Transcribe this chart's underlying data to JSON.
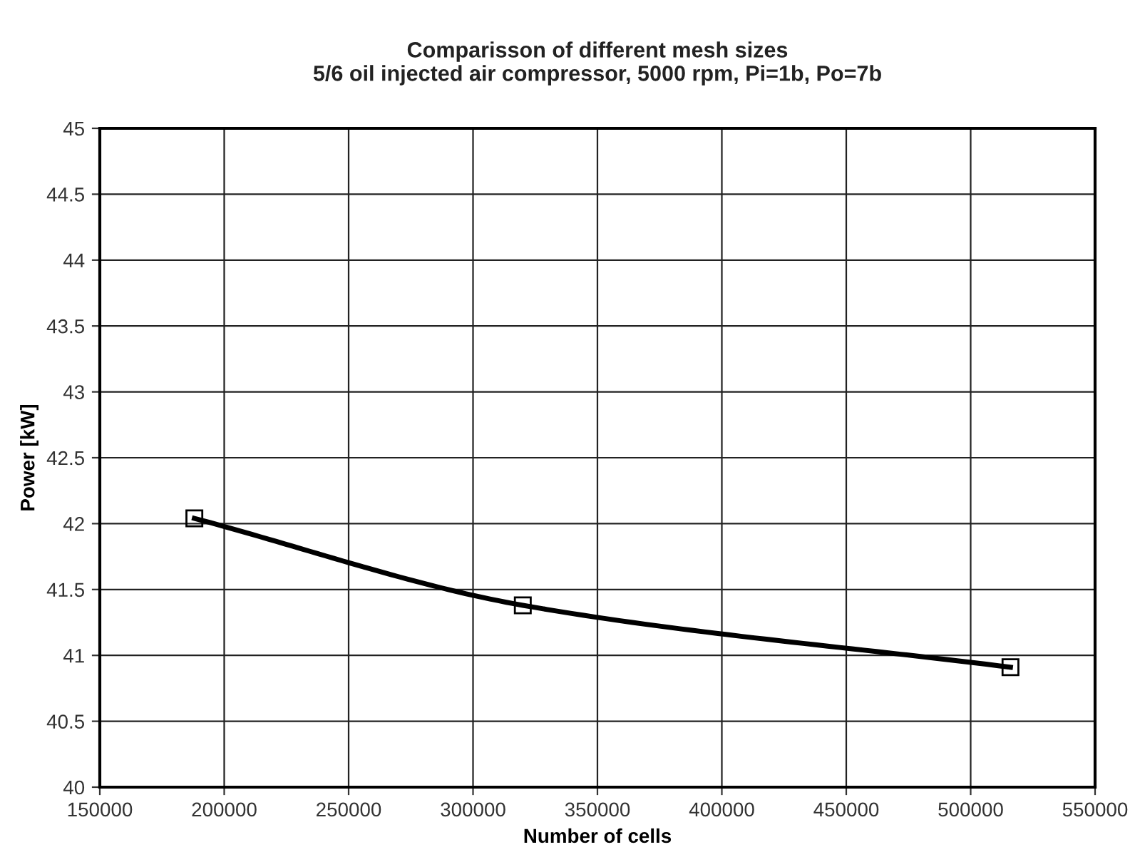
{
  "chart_data": {
    "type": "line",
    "title": "Comparisson of different mesh sizes\n5/6 oil injected air compressor, 5000 rpm, Pi=1b, Po=7b",
    "xlabel": "Number of cells",
    "ylabel": "Power [kW]",
    "x": [
      188000,
      320000,
      516000
    ],
    "series": [
      {
        "color": "#000000",
        "values": [
          42.04,
          41.38,
          40.91
        ]
      }
    ],
    "xlim": [
      150000,
      550000
    ],
    "xticks": [
      150000,
      200000,
      250000,
      300000,
      350000,
      400000,
      450000,
      500000,
      550000
    ],
    "ylim": [
      40,
      45
    ],
    "yticks": [
      40,
      40.5,
      41,
      41.5,
      42,
      42.5,
      43,
      43.5,
      44,
      44.5,
      45
    ],
    "grid": true,
    "marker": "square",
    "line_style": "solid"
  }
}
